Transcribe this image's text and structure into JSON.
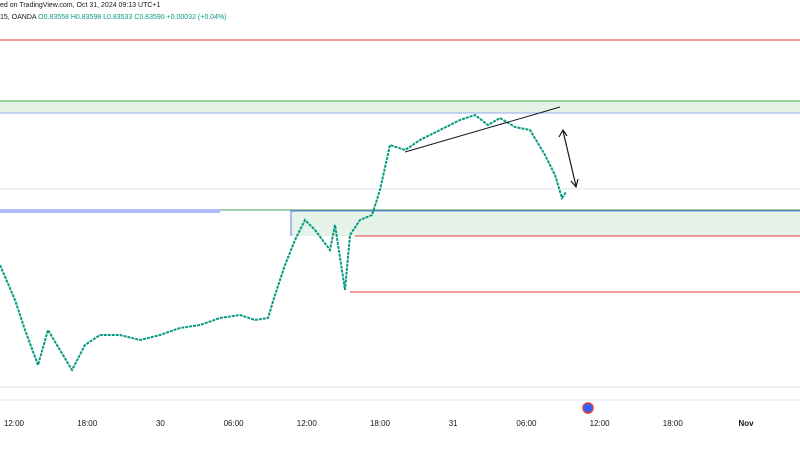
{
  "header": {
    "published": "ed on TradingView.com, Oct 31, 2024 09:13 UTC+1",
    "symbol": "15, OANDA",
    "ohlc": "O0.83558 H0.83598 L0.83533 C0.83590 +0.00032 (+0.04%)"
  },
  "time_axis": {
    "labels": [
      "12:00",
      "18:00",
      "30",
      "06:00",
      "12:00",
      "18:00",
      "31",
      "06:00",
      "12:00",
      "18:00",
      "Nov"
    ]
  }
}
